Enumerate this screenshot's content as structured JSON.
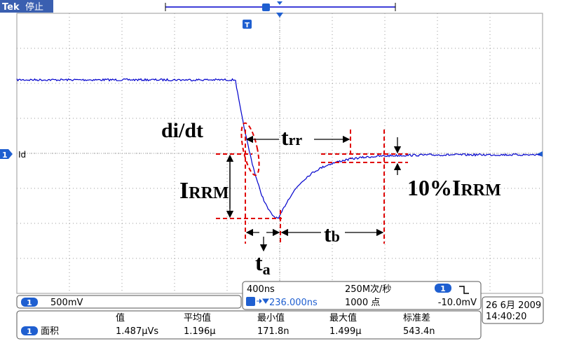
{
  "header": {
    "brand": "Tek",
    "status": "停止"
  },
  "channel": {
    "number": "1",
    "label": "Id"
  },
  "annotations": {
    "didt": "di/dt",
    "trr": {
      "main": "t",
      "sub": "rr"
    },
    "irrm": {
      "main": "I",
      "sub": "RRM"
    },
    "ten_irrm": {
      "main": "10%I",
      "sub": "RRM"
    },
    "ta": {
      "main": "t",
      "sub": "a"
    },
    "tb": {
      "main": "t",
      "sub": "b"
    }
  },
  "settings": {
    "channel_number": "1",
    "scale": "500mV",
    "timebase": "400ns",
    "sample_rate": "250M次/秒",
    "trigger_channel": "1",
    "trigger_level": "-10.0mV",
    "trigger_position": "236.000ns",
    "record_length": "1000 点"
  },
  "datetime": {
    "date": "26 6月  2009",
    "time": "14:40:20"
  },
  "measurements": {
    "headers": [
      "值",
      "平均值",
      "最小值",
      "最大值",
      "标准差"
    ],
    "rows": [
      {
        "channel": "1",
        "name": "面积",
        "cells": [
          "1.487µVs",
          "1.196µ",
          "171.8n",
          "1.499µ",
          "543.4n"
        ]
      }
    ]
  }
}
